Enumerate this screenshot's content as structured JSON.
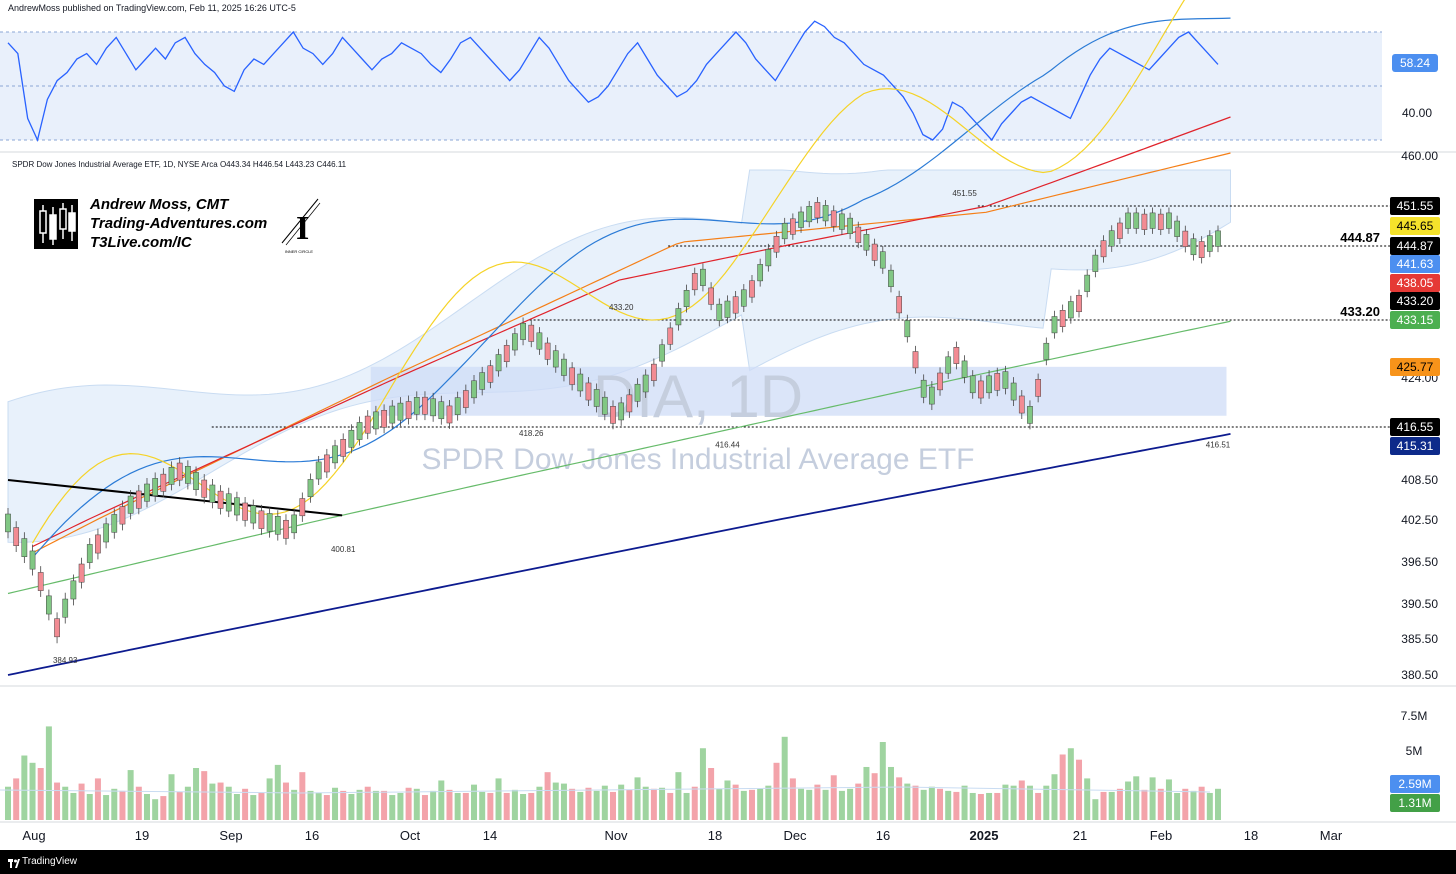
{
  "header": {
    "published": "AndrewMoss published on TradingView.com, Feb 11, 2025 16:26 UTC-5"
  },
  "symbol_line": "SPDR Dow Jones Industrial Average ETF, 1D, NYSE Arca  O443.34  H446.54  L443.23  C446.11",
  "branding": {
    "name": "Andrew Moss, CMT",
    "site": "Trading-Adventures.com",
    "link": "T3Live.com/IC",
    "badge": "INNER CIRCLE"
  },
  "watermark": {
    "ticker": "DIA, 1D",
    "name": "SPDR Dow Jones Industrial Average ETF"
  },
  "footer": {
    "brand": "TradingView"
  },
  "colors": {
    "up": "#81c784",
    "down": "#f28b93",
    "rsi": "#2962ff",
    "sma5": "#f5d327",
    "sma10": "#2b7bd6",
    "sma20": "#e0232b",
    "sma50": "#66bb6a",
    "sma100": "#f57f17",
    "sma200": "#0d1b8f"
  },
  "chart_data": {
    "type": "candlestick",
    "x_ticks": [
      "Aug",
      "19",
      "Sep",
      "16",
      "Oct",
      "14",
      "Nov",
      "18",
      "Dec",
      "16",
      "2025",
      "21",
      "Feb",
      "18",
      "Mar"
    ],
    "price_axis": [
      "460.00",
      "424.00",
      "408.50",
      "402.50",
      "396.50",
      "390.50",
      "385.50",
      "380.50"
    ],
    "price_labels": [
      {
        "text": "451.55",
        "price": 451.55,
        "bg": "#000000",
        "fg": "#ffffff"
      },
      {
        "text": "445.65",
        "price": 445.65,
        "bg": "#f5e22b",
        "fg": "#000000"
      },
      {
        "text": "444.87",
        "price": 444.87,
        "bg": "#000000",
        "fg": "#ffffff"
      },
      {
        "text": "441.63",
        "price": 441.63,
        "bg": "#4c8ff0",
        "fg": "#ffffff"
      },
      {
        "text": "438.05",
        "price": 438.05,
        "bg": "#e53935",
        "fg": "#ffffff"
      },
      {
        "text": "433.20",
        "price": 433.2,
        "bg": "#000000",
        "fg": "#ffffff"
      },
      {
        "text": "433.15",
        "price": 433.15,
        "bg": "#4caf50",
        "fg": "#ffffff"
      },
      {
        "text": "425.77",
        "price": 425.77,
        "bg": "#f7931a",
        "fg": "#000000"
      },
      {
        "text": "416.55",
        "price": 416.55,
        "bg": "#000000",
        "fg": "#ffffff"
      },
      {
        "text": "415.31",
        "price": 415.31,
        "bg": "#0d2a8a",
        "fg": "#ffffff"
      }
    ],
    "horizontal_levels": [
      451.55,
      444.87,
      433.2,
      416.55
    ],
    "level_labels": [
      {
        "text": "444.87",
        "price": 444.87
      },
      {
        "text": "433.20",
        "price": 433.2
      }
    ],
    "point_annotations": [
      {
        "text": "384.93",
        "bar": 7
      },
      {
        "text": "400.81",
        "bar": 41
      },
      {
        "text": "433.20",
        "bar": 75
      },
      {
        "text": "418.26",
        "bar": 64
      },
      {
        "text": "416.44",
        "bar": 88
      },
      {
        "text": "451.55",
        "bar": 117
      },
      {
        "text": "416.51",
        "bar": 148
      }
    ],
    "trendline": {
      "from": {
        "bar": 0,
        "price": 408.5
      },
      "to": {
        "bar": 41,
        "price": 403.2
      }
    },
    "support_zone": {
      "from_bar": 45,
      "to_bar": 150,
      "low": 418.26,
      "high": 425.77
    },
    "rsi": {
      "axis": [
        "58.24",
        "40.00"
      ],
      "current": 58.24,
      "current_label": "58.24",
      "levels": [
        70,
        50,
        30
      ]
    },
    "volume": {
      "axis": [
        "7.5M",
        "5M"
      ],
      "labels": [
        {
          "text": "2.59M",
          "value": 2.59,
          "bg": "#4c8ff0"
        },
        {
          "text": "1.31M",
          "value": 1.31,
          "bg": "#43a047"
        }
      ]
    }
  }
}
